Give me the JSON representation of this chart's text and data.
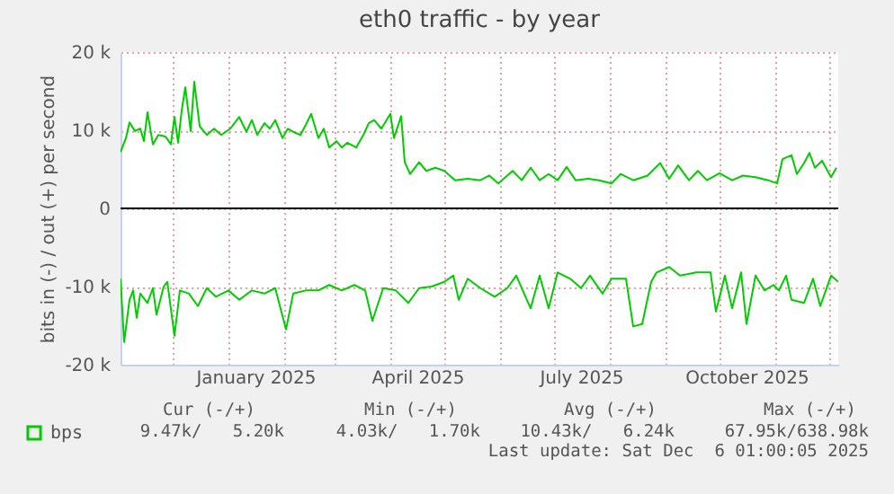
{
  "chart_data": {
    "type": "line",
    "title": "eth0 traffic - by year",
    "ylabel": "bits in (-) / out (+) per second",
    "xlim": [
      "2024-11-02",
      "2025-12-06"
    ],
    "xticks": [
      {
        "value": "2024-12-01",
        "label": null
      },
      {
        "value": "2025-01-01",
        "label": null
      },
      {
        "value": "2025-01-16",
        "label": "January 2025"
      },
      {
        "value": "2025-02-01",
        "label": null
      },
      {
        "value": "2025-03-01",
        "label": null
      },
      {
        "value": "2025-04-01",
        "label": null
      },
      {
        "value": "2025-04-16",
        "label": "April 2025"
      },
      {
        "value": "2025-05-01",
        "label": null
      },
      {
        "value": "2025-06-01",
        "label": null
      },
      {
        "value": "2025-07-01",
        "label": null
      },
      {
        "value": "2025-07-16",
        "label": "July 2025"
      },
      {
        "value": "2025-08-01",
        "label": null
      },
      {
        "value": "2025-09-01",
        "label": null
      },
      {
        "value": "2025-10-01",
        "label": null
      },
      {
        "value": "2025-10-16",
        "label": "October 2025"
      },
      {
        "value": "2025-11-01",
        "label": null
      },
      {
        "value": "2025-12-01",
        "label": null
      }
    ],
    "ylim": [
      -20000,
      20000
    ],
    "yticks": [
      {
        "value": -20000,
        "label": "-20 k"
      },
      {
        "value": -10000,
        "label": "-10 k"
      },
      {
        "value": 0,
        "label": "0"
      },
      {
        "value": 10000,
        "label": "10 k"
      },
      {
        "value": 20000,
        "label": "20 k"
      }
    ],
    "grid": true,
    "legend": "bottom left",
    "ref_lines": [
      {
        "axis": "y",
        "value": 0,
        "color": "#000000"
      }
    ],
    "series": [
      {
        "name": "bps",
        "color": "#00cc00",
        "x": [
          "2024-11-02",
          "2024-11-05",
          "2024-11-07",
          "2024-11-10",
          "2024-11-13",
          "2024-11-15",
          "2024-11-17",
          "2024-11-20",
          "2024-11-23",
          "2024-11-27",
          "2024-11-30",
          "2024-12-02",
          "2024-12-04",
          "2024-12-06",
          "2024-12-08",
          "2024-12-11",
          "2024-12-13",
          "2024-12-16",
          "2024-12-20",
          "2024-12-24",
          "2024-12-28",
          "2025-01-02",
          "2025-01-07",
          "2025-01-11",
          "2025-01-14",
          "2025-01-17",
          "2025-01-21",
          "2025-01-24",
          "2025-01-27",
          "2025-01-31",
          "2025-02-03",
          "2025-02-06",
          "2025-02-10",
          "2025-02-13",
          "2025-02-16",
          "2025-02-20",
          "2025-02-23",
          "2025-02-26",
          "2025-03-02",
          "2025-03-05",
          "2025-03-08",
          "2025-03-13",
          "2025-03-17",
          "2025-03-20",
          "2025-03-23",
          "2025-03-27",
          "2025-04-01",
          "2025-04-03",
          "2025-04-07",
          "2025-04-09",
          "2025-04-12",
          "2025-04-17",
          "2025-04-21",
          "2025-04-26",
          "2025-05-01",
          "2025-05-07",
          "2025-05-14",
          "2025-05-21",
          "2025-05-26",
          "2025-05-31",
          "2025-06-08",
          "2025-06-13",
          "2025-06-18",
          "2025-06-23",
          "2025-06-28",
          "2025-07-03",
          "2025-07-08",
          "2025-07-13",
          "2025-07-20",
          "2025-07-26",
          "2025-08-02",
          "2025-08-07",
          "2025-08-14",
          "2025-08-22",
          "2025-08-29",
          "2025-09-03",
          "2025-09-08",
          "2025-09-14",
          "2025-09-19",
          "2025-09-24",
          "2025-10-01",
          "2025-10-08",
          "2025-10-14",
          "2025-10-21",
          "2025-10-28",
          "2025-11-02",
          "2025-11-05",
          "2025-11-10",
          "2025-11-13",
          "2025-11-17",
          "2025-11-20",
          "2025-11-23",
          "2025-11-27",
          "2025-12-02",
          "2025-12-05"
        ],
        "values": [
          7200,
          9000,
          11000,
          9900,
          10200,
          8600,
          12300,
          8200,
          9400,
          9200,
          8200,
          11700,
          8400,
          12500,
          15500,
          9900,
          16200,
          10500,
          9400,
          10200,
          9400,
          10200,
          11700,
          9800,
          11300,
          9400,
          10900,
          10200,
          11300,
          9000,
          10200,
          9800,
          9400,
          10700,
          12100,
          9000,
          10200,
          7800,
          8600,
          7800,
          8400,
          7800,
          9400,
          10900,
          11300,
          10200,
          12100,
          9000,
          11800,
          5900,
          4400,
          5900,
          4800,
          5200,
          4800,
          3600,
          3800,
          3600,
          4200,
          3200,
          4800,
          3600,
          5200,
          3600,
          4400,
          3600,
          5300,
          3600,
          3800,
          3600,
          3200,
          4400,
          3600,
          4200,
          5800,
          3800,
          5500,
          3600,
          4800,
          3600,
          4500,
          3600,
          4200,
          4000,
          3600,
          3200,
          6300,
          6800,
          4400,
          5800,
          7100,
          5200,
          6100,
          4000,
          5200
        ]
      },
      {
        "color": "#00cc00",
        "x": [
          "2024-11-02",
          "2024-11-04",
          "2024-11-07",
          "2024-11-09",
          "2024-11-11",
          "2024-11-13",
          "2024-11-17",
          "2024-11-20",
          "2024-11-22",
          "2024-11-26",
          "2024-11-28",
          "2024-12-02",
          "2024-12-05",
          "2024-12-10",
          "2024-12-15",
          "2024-12-20",
          "2024-12-25",
          "2025-01-01",
          "2025-01-07",
          "2025-01-14",
          "2025-01-21",
          "2025-01-27",
          "2025-02-02",
          "2025-02-06",
          "2025-02-13",
          "2025-02-20",
          "2025-02-26",
          "2025-03-05",
          "2025-03-12",
          "2025-03-18",
          "2025-03-22",
          "2025-03-28",
          "2025-04-04",
          "2025-04-11",
          "2025-04-17",
          "2025-04-24",
          "2025-05-01",
          "2025-05-06",
          "2025-05-09",
          "2025-05-14",
          "2025-05-21",
          "2025-05-29",
          "2025-06-05",
          "2025-06-10",
          "2025-06-18",
          "2025-06-23",
          "2025-06-28",
          "2025-07-03",
          "2025-07-10",
          "2025-07-16",
          "2025-07-21",
          "2025-07-28",
          "2025-08-02",
          "2025-08-10",
          "2025-08-14",
          "2025-08-19",
          "2025-08-24",
          "2025-08-27",
          "2025-09-03",
          "2025-09-09",
          "2025-09-18",
          "2025-09-26",
          "2025-09-29",
          "2025-10-04",
          "2025-10-08",
          "2025-10-13",
          "2025-10-16",
          "2025-10-21",
          "2025-10-26",
          "2025-10-31",
          "2025-11-03",
          "2025-11-07",
          "2025-11-10",
          "2025-11-17",
          "2025-11-22",
          "2025-11-26",
          "2025-12-02",
          "2025-12-06"
        ],
        "values": [
          -9000,
          -17100,
          -11700,
          -10500,
          -14000,
          -10900,
          -12100,
          -10200,
          -13600,
          -10000,
          -9400,
          -16300,
          -10500,
          -10900,
          -12500,
          -10200,
          -11300,
          -10500,
          -11700,
          -10500,
          -10900,
          -10200,
          -15500,
          -10900,
          -10500,
          -10500,
          -9800,
          -10500,
          -9800,
          -10500,
          -14400,
          -10200,
          -10500,
          -12100,
          -10200,
          -10000,
          -9400,
          -8600,
          -11700,
          -9000,
          -10200,
          -11300,
          -10200,
          -8600,
          -12800,
          -8600,
          -12800,
          -8200,
          -9000,
          -10200,
          -8600,
          -10900,
          -9000,
          -9000,
          -15100,
          -14800,
          -9400,
          -8200,
          -7500,
          -8600,
          -8200,
          -8200,
          -13200,
          -8600,
          -12800,
          -8200,
          -14800,
          -8600,
          -10500,
          -9800,
          -10500,
          -8600,
          -11700,
          -12100,
          -9000,
          -12500,
          -8600,
          -9400
        ]
      }
    ],
    "annotations": [
      "Cur (-/+)",
      "Min (-/+)",
      "Avg (-/+)",
      "Max (-/+)",
      "9.47k/   5.20k",
      "4.03k/   1.70k",
      "10.43k/   6.24k",
      "67.95k/638.98k",
      "Last update: Sat Dec  6 01:00:05 2025"
    ]
  }
}
